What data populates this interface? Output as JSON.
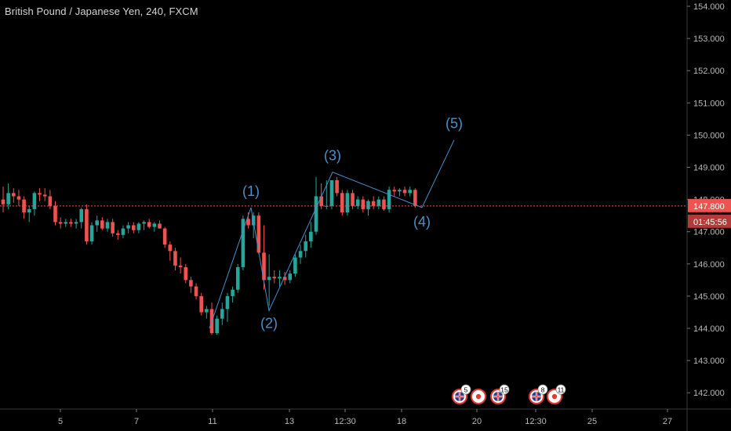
{
  "header": {
    "symbol_title": "British Pound / Japanese Yen, 240, FXCM"
  },
  "price_axis": {
    "ticks": [
      "154.000",
      "153.000",
      "152.000",
      "151.000",
      "150.000",
      "149.000",
      "148.000",
      "147.000",
      "146.000",
      "145.000",
      "144.000",
      "143.000",
      "142.000"
    ],
    "current_price_label": "147.800",
    "countdown_label": "01:45:56",
    "current_price": 147.8
  },
  "time_axis": {
    "ticks": [
      "5",
      "7",
      "11",
      "13",
      "12:30",
      "18",
      "20",
      "12:30",
      "25",
      "27"
    ]
  },
  "colors": {
    "up": "#26a69a",
    "down": "#ef5350",
    "wave": "#4a90c8",
    "price_line": "#ef5350",
    "background": "#000000",
    "axis_text": "#b8b8b8"
  },
  "chart_data": {
    "type": "candlestick",
    "title": "British Pound / Japanese Yen, 240, FXCM",
    "ylim": [
      141.6,
      154.15
    ],
    "x_labels": [
      "5",
      "7",
      "11",
      "13",
      "12:30",
      "18",
      "20",
      "12:30",
      "25",
      "27"
    ],
    "candles": [
      [
        148.0,
        148.4,
        147.6,
        147.85
      ],
      [
        147.85,
        148.5,
        147.7,
        148.2
      ],
      [
        148.2,
        148.35,
        147.9,
        148.1
      ],
      [
        148.1,
        148.3,
        147.8,
        148.0
      ],
      [
        148.0,
        148.1,
        147.4,
        147.6
      ],
      [
        147.6,
        147.8,
        147.3,
        147.7
      ],
      [
        147.7,
        148.25,
        147.5,
        148.2
      ],
      [
        148.2,
        148.35,
        147.95,
        148.15
      ],
      [
        148.15,
        148.35,
        147.95,
        148.1
      ],
      [
        148.1,
        148.3,
        147.7,
        147.8
      ],
      [
        147.8,
        147.95,
        147.2,
        147.3
      ],
      [
        147.3,
        147.45,
        147.1,
        147.25
      ],
      [
        147.25,
        147.4,
        147.15,
        147.3
      ],
      [
        147.3,
        147.4,
        147.15,
        147.25
      ],
      [
        147.25,
        147.4,
        147.1,
        147.3
      ],
      [
        147.3,
        147.75,
        147.1,
        147.7
      ],
      [
        147.7,
        147.85,
        146.6,
        146.7
      ],
      [
        146.7,
        147.3,
        146.6,
        147.2
      ],
      [
        147.2,
        147.5,
        147.0,
        147.35
      ],
      [
        147.35,
        147.45,
        147.05,
        147.1
      ],
      [
        147.1,
        147.4,
        147.0,
        147.3
      ],
      [
        147.3,
        147.4,
        146.85,
        146.95
      ],
      [
        146.95,
        147.05,
        146.75,
        146.9
      ],
      [
        146.9,
        147.2,
        146.8,
        147.1
      ],
      [
        147.1,
        147.3,
        146.95,
        147.2
      ],
      [
        147.2,
        147.3,
        146.95,
        147.05
      ],
      [
        147.05,
        147.3,
        146.95,
        147.25
      ],
      [
        147.25,
        147.35,
        147.05,
        147.3
      ],
      [
        147.3,
        147.4,
        147.1,
        147.15
      ],
      [
        147.15,
        147.3,
        147.0,
        147.25
      ],
      [
        147.25,
        147.35,
        147.1,
        147.1
      ],
      [
        147.1,
        147.15,
        146.5,
        146.6
      ],
      [
        146.6,
        146.7,
        146.1,
        146.4
      ],
      [
        146.4,
        146.5,
        145.8,
        145.95
      ],
      [
        145.95,
        146.2,
        145.7,
        145.9
      ],
      [
        145.9,
        146.0,
        145.4,
        145.5
      ],
      [
        145.5,
        145.6,
        145.1,
        145.3
      ],
      [
        145.3,
        145.4,
        144.9,
        145.0
      ],
      [
        145.0,
        145.1,
        144.4,
        144.5
      ],
      [
        144.5,
        144.7,
        144.3,
        144.6
      ],
      [
        144.6,
        144.8,
        143.8,
        143.85
      ],
      [
        143.85,
        144.4,
        143.8,
        144.3
      ],
      [
        144.3,
        144.8,
        144.1,
        144.6
      ],
      [
        144.6,
        145.1,
        144.2,
        145.0
      ],
      [
        145.0,
        145.3,
        144.8,
        145.2
      ],
      [
        145.2,
        146.0,
        145.1,
        145.9
      ],
      [
        145.9,
        147.5,
        145.8,
        147.4
      ],
      [
        147.4,
        147.6,
        147.1,
        147.2
      ],
      [
        147.2,
        147.6,
        146.8,
        147.5
      ],
      [
        147.5,
        147.6,
        146.3,
        146.35
      ],
      [
        146.35,
        147.2,
        145.2,
        145.5
      ],
      [
        145.5,
        146.3,
        144.7,
        145.6
      ],
      [
        145.6,
        145.8,
        145.4,
        145.55
      ],
      [
        145.55,
        145.8,
        145.3,
        145.6
      ],
      [
        145.6,
        145.75,
        145.35,
        145.5
      ],
      [
        145.5,
        145.8,
        145.4,
        145.7
      ],
      [
        145.7,
        146.3,
        145.6,
        146.2
      ],
      [
        146.2,
        146.6,
        146.0,
        146.4
      ],
      [
        146.4,
        146.9,
        146.2,
        146.7
      ],
      [
        146.7,
        147.3,
        146.5,
        147.0
      ],
      [
        147.0,
        148.7,
        146.9,
        148.1
      ],
      [
        148.1,
        148.5,
        147.7,
        147.8
      ],
      [
        147.8,
        148.6,
        147.7,
        147.8
      ],
      [
        147.8,
        148.6,
        147.7,
        148.6
      ],
      [
        148.6,
        148.7,
        148.1,
        148.2
      ],
      [
        148.2,
        148.3,
        147.5,
        147.6
      ],
      [
        147.6,
        148.3,
        147.5,
        148.2
      ],
      [
        148.2,
        148.3,
        147.7,
        147.8
      ],
      [
        147.8,
        148.1,
        147.7,
        148.0
      ],
      [
        148.0,
        148.1,
        147.6,
        147.7
      ],
      [
        147.7,
        148.0,
        147.5,
        147.95
      ],
      [
        147.95,
        148.1,
        147.7,
        147.8
      ],
      [
        147.8,
        148.1,
        147.7,
        148.0
      ],
      [
        148.0,
        148.1,
        147.65,
        147.7
      ],
      [
        147.7,
        148.4,
        147.6,
        148.3
      ],
      [
        148.3,
        148.4,
        148.1,
        148.25
      ],
      [
        148.25,
        148.35,
        148.1,
        148.3
      ],
      [
        148.3,
        148.4,
        148.1,
        148.2
      ],
      [
        148.2,
        148.4,
        148.1,
        148.3
      ],
      [
        148.3,
        148.35,
        147.75,
        147.8
      ]
    ],
    "wave_points": [
      {
        "label": "",
        "x": 267,
        "y": 144.0
      },
      {
        "label": "(1)",
        "x": 320,
        "y": 147.75
      },
      {
        "label": "(2)",
        "x": 343,
        "y": 144.55
      },
      {
        "label": "(3)",
        "x": 424,
        "y": 148.85
      },
      {
        "label": "(4)",
        "x": 538,
        "y": 147.75
      },
      {
        "label": "(5)",
        "x": 579,
        "y": 149.85
      }
    ],
    "events": [
      {
        "icon": "gb-flag-icon",
        "badge": "5"
      },
      {
        "icon": "jp-flag-icon",
        "badge": ""
      },
      {
        "icon": "gb-flag-icon",
        "badge": "15"
      },
      {
        "icon": "gb-flag-icon",
        "badge": "8"
      },
      {
        "icon": "jp-flag-icon",
        "badge": "11"
      }
    ]
  }
}
